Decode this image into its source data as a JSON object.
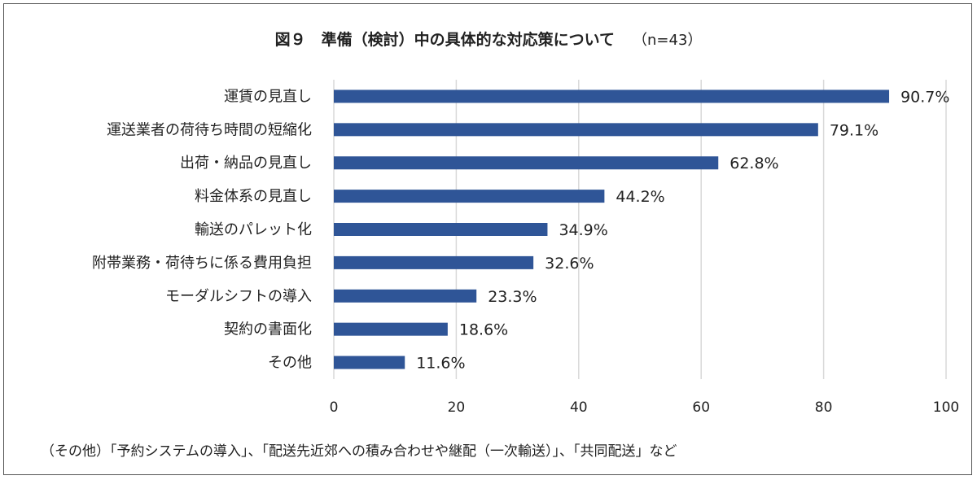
{
  "title": "図９　準備（検討）中の具体的な対応策について",
  "subtitle": "（n=43）",
  "footnote": "（その他）「予約システムの導入」、「配送先近郊への積み合わせや継配（一次輸送）」、「共同配送」など",
  "chart_data": {
    "type": "bar",
    "orientation": "horizontal",
    "title": "図９　準備（検討）中の具体的な対応策について",
    "subtitle": "（n=43）",
    "categories": [
      "運賃の見直し",
      "運送業者の荷待ち時間の短縮化",
      "出荷・納品の見直し",
      "料金体系の見直し",
      "輸送のパレット化",
      "附帯業務・荷待ちに係る費用負担",
      "モーダルシフトの導入",
      "契約の書面化",
      "その他"
    ],
    "values": [
      90.7,
      79.1,
      62.8,
      44.2,
      34.9,
      32.6,
      23.3,
      18.6,
      11.6
    ],
    "value_labels": [
      "90.7%",
      "79.1%",
      "62.8%",
      "44.2%",
      "34.9%",
      "32.6%",
      "23.3%",
      "18.6%",
      "11.6%"
    ],
    "xlim": [
      0,
      100
    ],
    "xticks": [
      0,
      20,
      40,
      60,
      80,
      100
    ],
    "grid": true,
    "bar_color": "#2F5597",
    "grid_color": "#D9D9D9"
  }
}
